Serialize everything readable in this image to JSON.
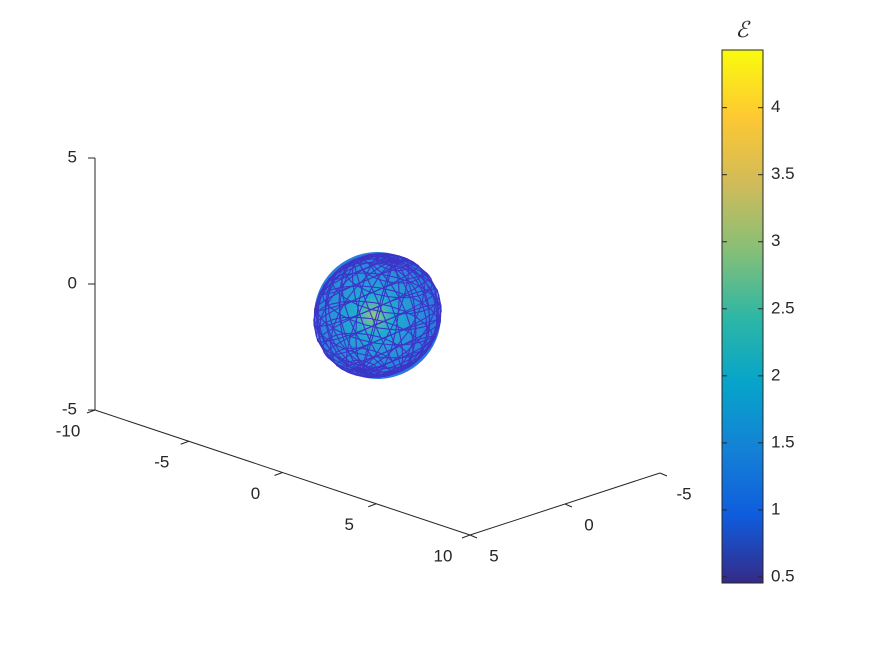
{
  "chart_data": {
    "type": "sphere3d",
    "xlim": [
      -10,
      10
    ],
    "xticks": [
      -10,
      -5,
      0,
      5,
      10
    ],
    "ylim": [
      -5,
      5
    ],
    "yticks": [
      -5,
      0,
      5
    ],
    "zlim": [
      -5,
      5
    ],
    "zticks": [
      -5,
      0,
      5
    ],
    "sphere": {
      "center": [
        0,
        0,
        0
      ],
      "radius": 2.4,
      "mesh_color": "#3c35c8"
    },
    "colorbar": {
      "title": "ℰ",
      "clim": [
        0.455,
        4.43
      ],
      "ticks": [
        0.5,
        1,
        1.5,
        2,
        2.5,
        3,
        3.5,
        4
      ],
      "colormap": [
        "#352a87",
        "#0f5cdd",
        "#1481d6",
        "#06a4ca",
        "#2eb7a4",
        "#87bf77",
        "#d1bb59",
        "#fec832",
        "#f9fb0e"
      ]
    }
  }
}
